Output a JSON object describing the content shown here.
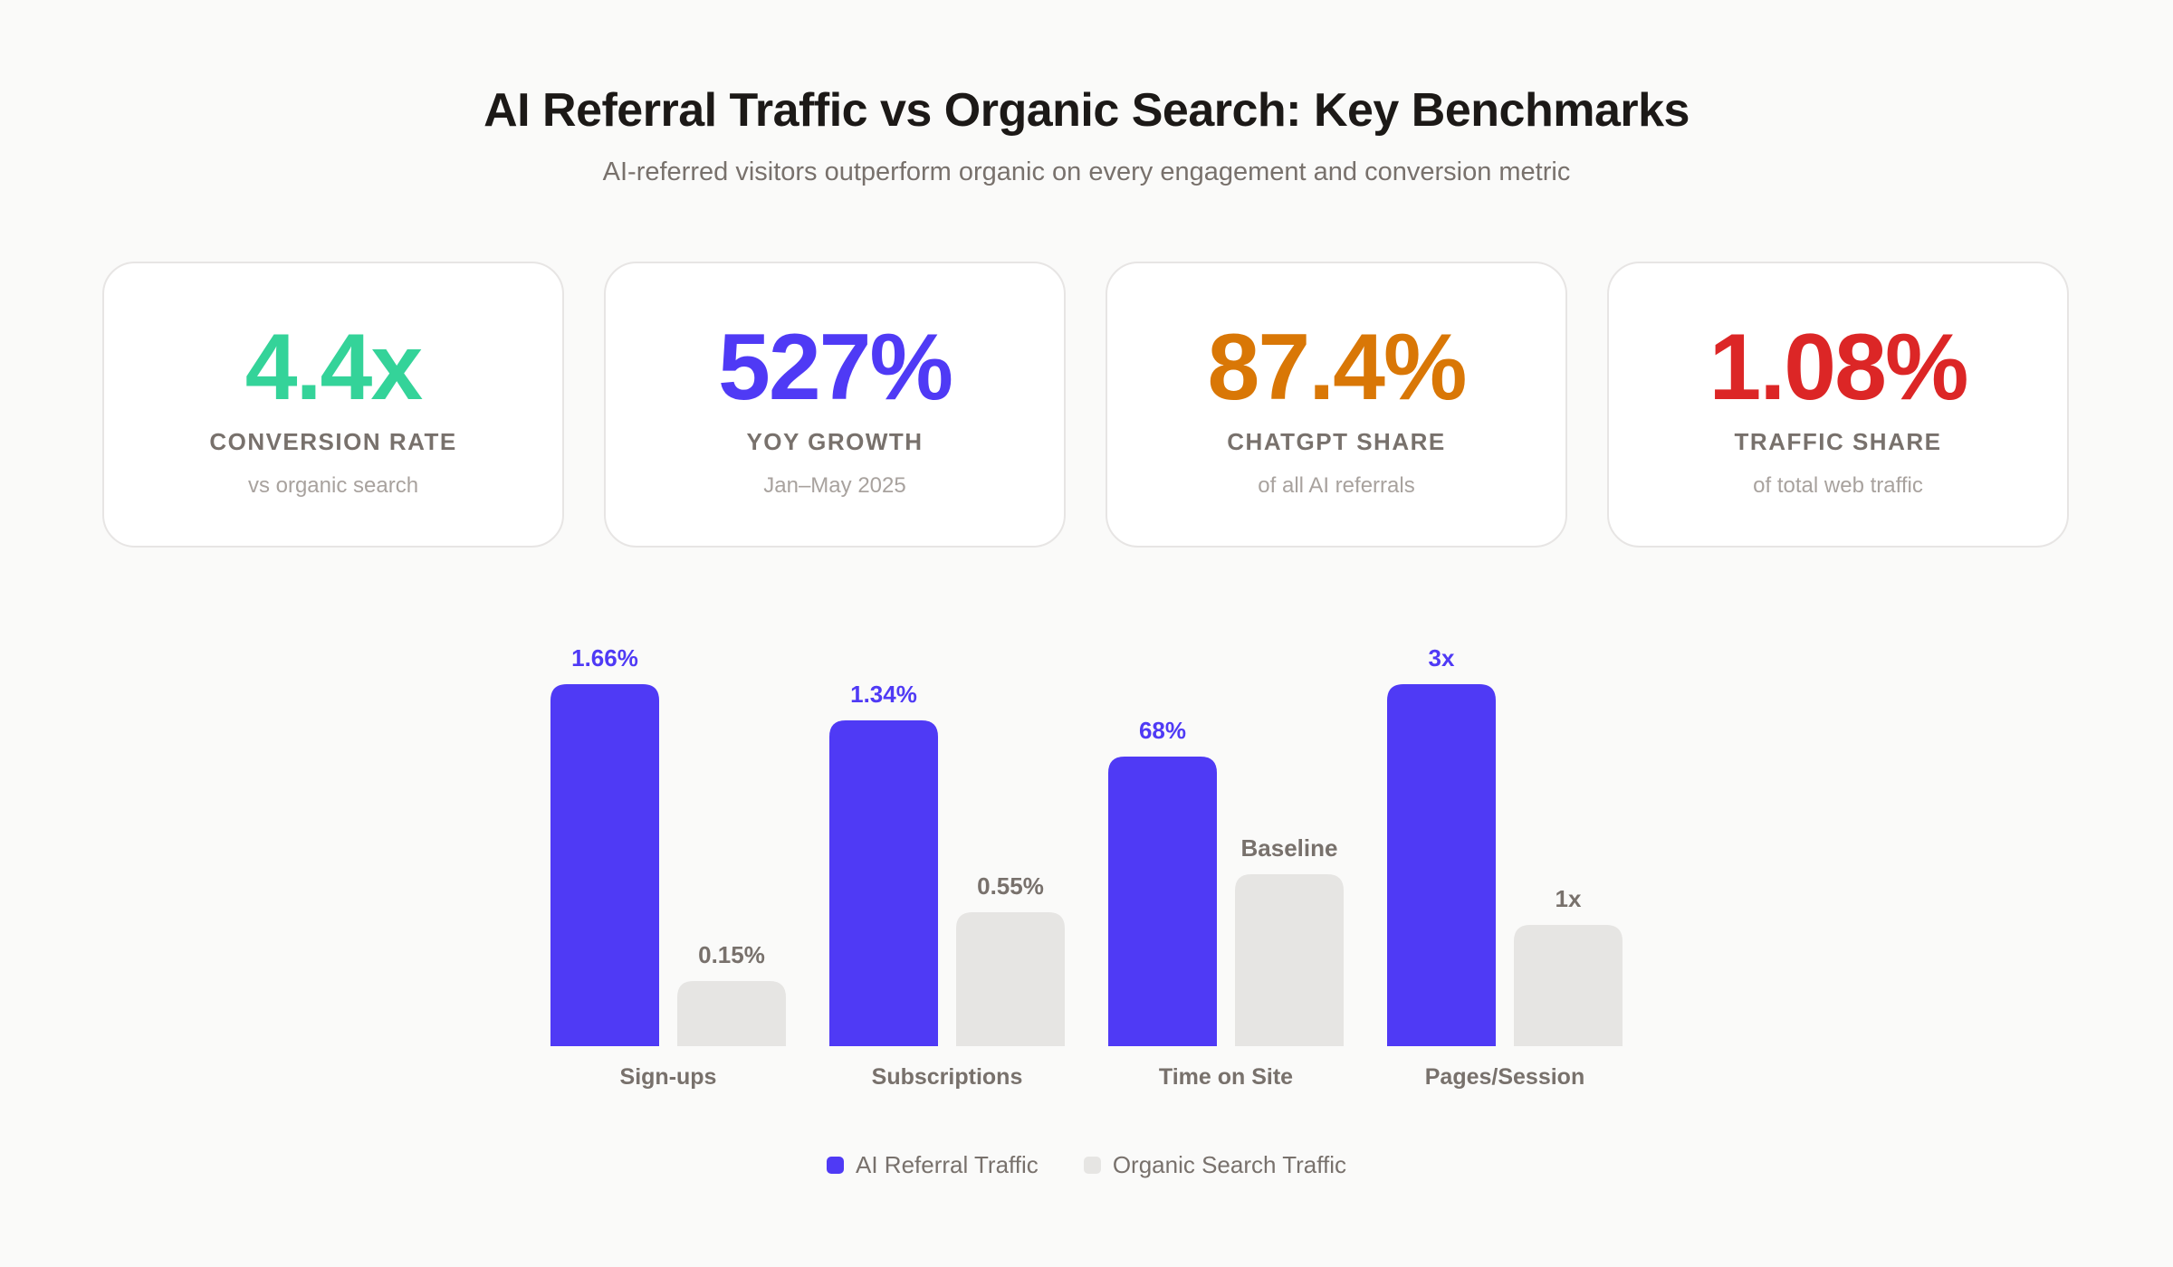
{
  "header": {
    "title": "AI Referral Traffic vs Organic Search: Key Benchmarks",
    "subtitle": "AI-referred visitors outperform organic on every engagement and conversion metric"
  },
  "cards": [
    {
      "value": "4.4x",
      "label": "CONVERSION RATE",
      "sub": "vs organic search",
      "color": "#34D399"
    },
    {
      "value": "527%",
      "label": "YOY GROWTH",
      "sub": "Jan–May 2025",
      "color": "#4F3AF5"
    },
    {
      "value": "87.4%",
      "label": "CHATGPT SHARE",
      "sub": "of all AI referrals",
      "color": "#D97706"
    },
    {
      "value": "1.08%",
      "label": "TRAFFIC SHARE",
      "sub": "of total web traffic",
      "color": "#DC2626"
    }
  ],
  "chart_data": {
    "type": "bar",
    "categories": [
      "Sign-ups",
      "Subscriptions",
      "Time on Site",
      "Pages/Session"
    ],
    "series": [
      {
        "name": "AI Referral Traffic",
        "color": "#4F3AF5",
        "labels": [
          "1.66%",
          "1.34%",
          "68%",
          "3x"
        ],
        "levels": [
          1.0,
          0.9,
          0.8,
          1.0
        ]
      },
      {
        "name": "Organic Search Traffic",
        "color": "#E6E5E3",
        "labels": [
          "0.15%",
          "0.55%",
          "Baseline",
          "1x"
        ],
        "levels": [
          0.18,
          0.37,
          0.475,
          0.335
        ]
      }
    ],
    "grid": false,
    "legend": "bottom-center"
  }
}
